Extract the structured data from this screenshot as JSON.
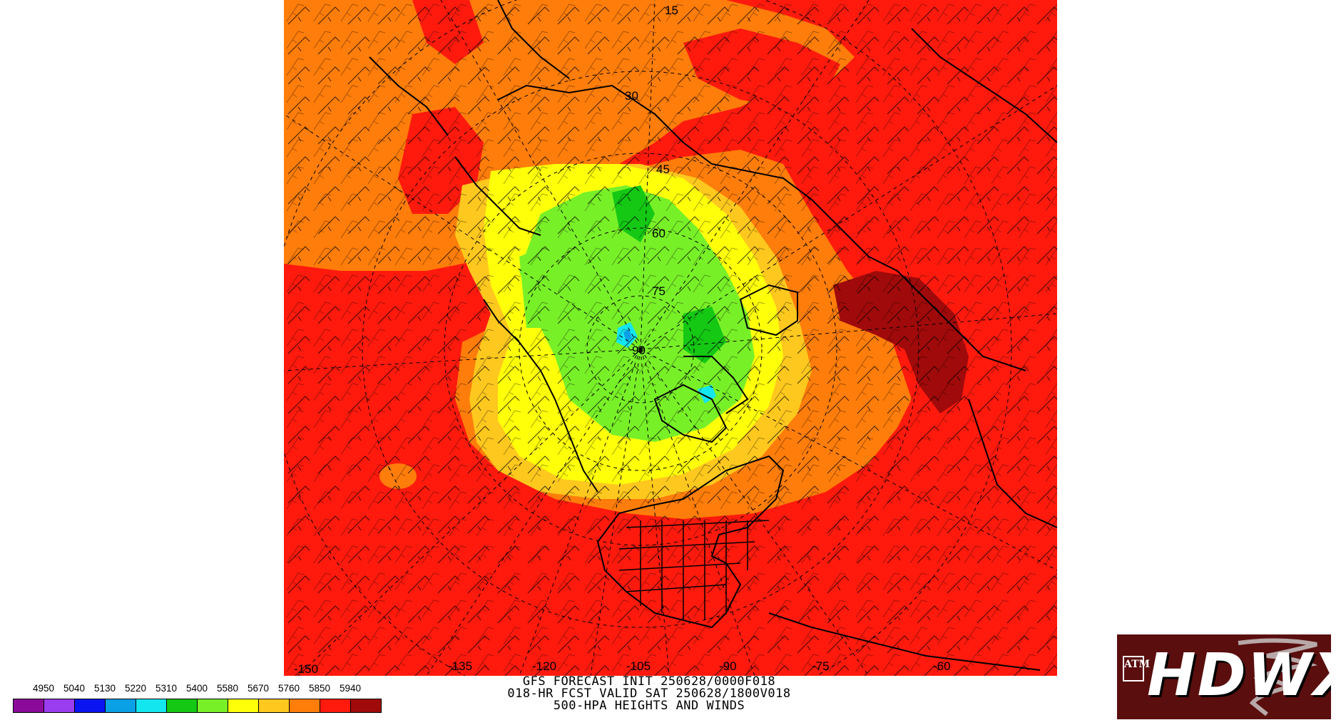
{
  "caption": {
    "line1": "GFS FORECAST INIT 250628/0000F018",
    "line2": "018-HR FCST VALID SAT 250628/1800V018",
    "line3": "500-HPA HEIGHTS AND WINDS"
  },
  "legend": {
    "levels": [
      "4950",
      "5040",
      "5130",
      "5220",
      "5310",
      "5400",
      "5580",
      "5670",
      "5760",
      "5850",
      "5940"
    ],
    "colors": [
      "#8b0a9a",
      "#9a3cf0",
      "#0a14f0",
      "#0aa0e6",
      "#14e6f0",
      "#14c814",
      "#78f028",
      "#ffff0a",
      "#ffc81e",
      "#ff7d0a",
      "#ff1a0d",
      "#a00a0a"
    ]
  },
  "map": {
    "labels": [
      "15",
      "30",
      "45",
      "60",
      "75",
      "90",
      "-150",
      "-135",
      "-120",
      "-105",
      "-90",
      "-75",
      "-60"
    ]
  },
  "logo": {
    "brand": "HDWX",
    "mark": "ATM"
  }
}
